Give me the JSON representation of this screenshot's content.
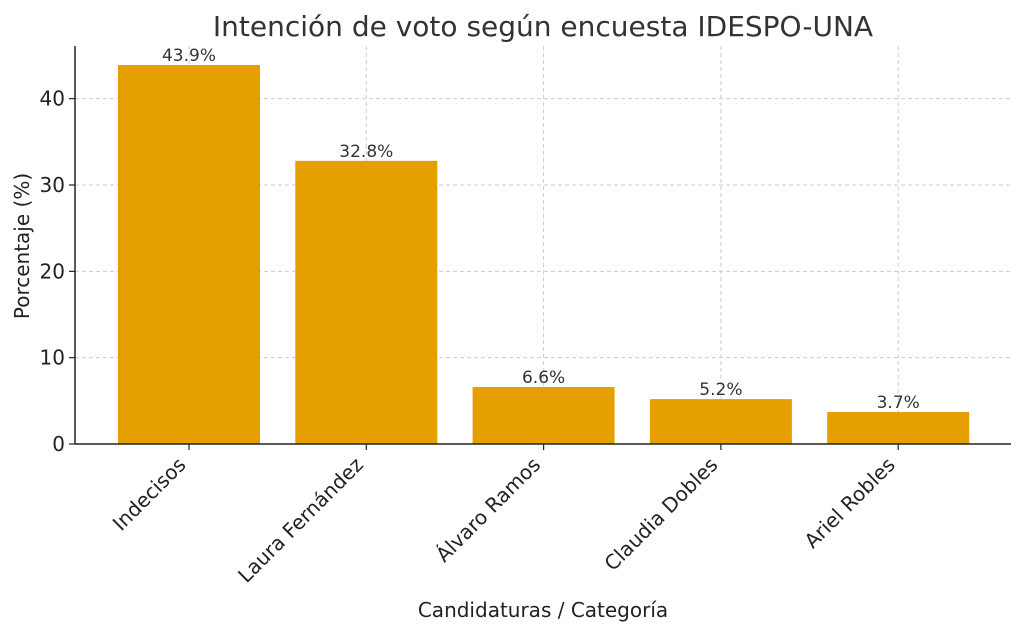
{
  "chart_data": {
    "type": "bar",
    "title": "Intención de voto según encuesta IDESPO-UNA",
    "xlabel": "Candidaturas / Categoría",
    "ylabel": "Porcentaje (%)",
    "categories": [
      "Indecisos",
      "Laura Fernández",
      "Álvaro Ramos",
      "Claudia Dobles",
      "Ariel Robles"
    ],
    "values": [
      43.9,
      32.8,
      6.6,
      5.2,
      3.7
    ],
    "value_labels": [
      "43.9%",
      "32.8%",
      "6.6%",
      "5.2%",
      "3.7%"
    ],
    "ylim": [
      0,
      46.1
    ],
    "yticks": [
      0,
      10,
      20,
      30,
      40
    ],
    "grid": true,
    "bar_color": "#E5A000"
  }
}
